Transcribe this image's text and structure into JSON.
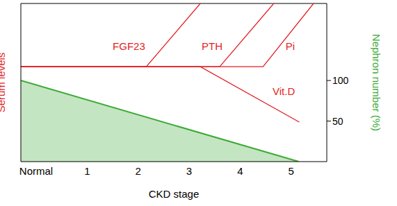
{
  "chart_data": {
    "type": "line",
    "x_label": "CKD stage",
    "y_label": "Serum levels",
    "y2_label": "Nephron number (%)",
    "xlim": [
      -0.3,
      5.7
    ],
    "xticks": [
      {
        "value": 0,
        "label": "Normal"
      },
      1,
      2,
      3,
      4,
      5
    ],
    "ylim": [
      0,
      100
    ],
    "yticks": [],
    "y2lim": [
      0,
      195
    ],
    "y2ticks": [
      50,
      100
    ],
    "grid": false,
    "series": [
      {
        "name": "FGF23",
        "color": "#e31e24",
        "x": [
          -0.3,
          2.16,
          3.22
        ],
        "values": [
          60,
          60,
          100
        ]
      },
      {
        "name": "PTH",
        "color": "#e31e24",
        "x": [
          -0.3,
          3.6,
          4.66
        ],
        "values": [
          60,
          60,
          100
        ]
      },
      {
        "name": "Pi",
        "color": "#e31e24",
        "x": [
          -0.3,
          4.45,
          5.44
        ],
        "values": [
          60,
          60,
          100
        ]
      },
      {
        "name": "Vit.D",
        "color": "#e31e24",
        "x": [
          -0.3,
          3.22,
          5.16
        ],
        "values": [
          60,
          60,
          25
        ]
      },
      {
        "type": "area",
        "axis": "y2",
        "color": "#3aaa35",
        "x": [
          -0.3,
          5.15
        ],
        "values": [
          100,
          0
        ]
      }
    ]
  }
}
